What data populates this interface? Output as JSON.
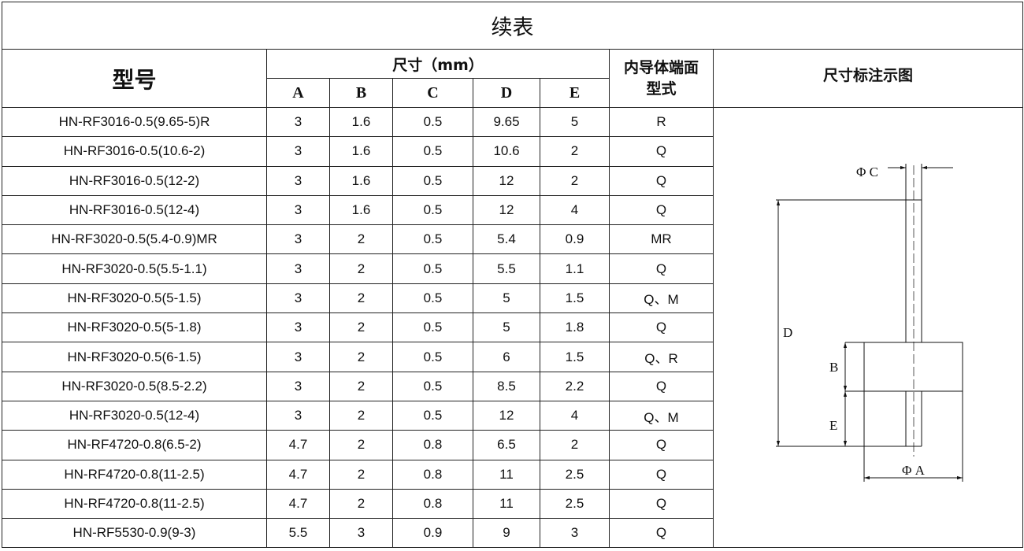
{
  "title": "续表",
  "headers": {
    "model": "型号",
    "dimensions": "尺寸（mm）",
    "cols": [
      "A",
      "B",
      "C",
      "D",
      "E"
    ],
    "inner_end": "内导体端面型式",
    "diagram": "尺寸标注示图"
  },
  "rows": [
    {
      "model": "HN-RF3016-0.5(9.65-5)R",
      "A": "3",
      "B": "1.6",
      "C": "0.5",
      "D": "9.65",
      "E": "5",
      "type": "R"
    },
    {
      "model": "HN-RF3016-0.5(10.6-2)",
      "A": "3",
      "B": "1.6",
      "C": "0.5",
      "D": "10.6",
      "E": "2",
      "type": "Q"
    },
    {
      "model": "HN-RF3016-0.5(12-2)",
      "A": "3",
      "B": "1.6",
      "C": "0.5",
      "D": "12",
      "E": "2",
      "type": "Q"
    },
    {
      "model": "HN-RF3016-0.5(12-4)",
      "A": "3",
      "B": "1.6",
      "C": "0.5",
      "D": "12",
      "E": "4",
      "type": "Q"
    },
    {
      "model": "HN-RF3020-0.5(5.4-0.9)MR",
      "A": "3",
      "B": "2",
      "C": "0.5",
      "D": "5.4",
      "E": "0.9",
      "type": "MR"
    },
    {
      "model": "HN-RF3020-0.5(5.5-1.1)",
      "A": "3",
      "B": "2",
      "C": "0.5",
      "D": "5.5",
      "E": "1.1",
      "type": "Q"
    },
    {
      "model": "HN-RF3020-0.5(5-1.5)",
      "A": "3",
      "B": "2",
      "C": "0.5",
      "D": "5",
      "E": "1.5",
      "type": "Q、M"
    },
    {
      "model": "HN-RF3020-0.5(5-1.8)",
      "A": "3",
      "B": "2",
      "C": "0.5",
      "D": "5",
      "E": "1.8",
      "type": "Q"
    },
    {
      "model": "HN-RF3020-0.5(6-1.5)",
      "A": "3",
      "B": "2",
      "C": "0.5",
      "D": "6",
      "E": "1.5",
      "type": "Q、R"
    },
    {
      "model": "HN-RF3020-0.5(8.5-2.2)",
      "A": "3",
      "B": "2",
      "C": "0.5",
      "D": "8.5",
      "E": "2.2",
      "type": "Q"
    },
    {
      "model": "HN-RF3020-0.5(12-4)",
      "A": "3",
      "B": "2",
      "C": "0.5",
      "D": "12",
      "E": "4",
      "type": "Q、M"
    },
    {
      "model": "HN-RF4720-0.8(6.5-2)",
      "A": "4.7",
      "B": "2",
      "C": "0.8",
      "D": "6.5",
      "E": "2",
      "type": "Q"
    },
    {
      "model": "HN-RF4720-0.8(11-2.5)",
      "A": "4.7",
      "B": "2",
      "C": "0.8",
      "D": "11",
      "E": "2.5",
      "type": "Q"
    },
    {
      "model": "HN-RF4720-0.8(11-2.5)",
      "A": "4.7",
      "B": "2",
      "C": "0.8",
      "D": "11",
      "E": "2.5",
      "type": "Q"
    },
    {
      "model": "HN-RF5530-0.9(9-3)",
      "A": "5.5",
      "B": "3",
      "C": "0.9",
      "D": "9",
      "E": "3",
      "type": "Q"
    }
  ],
  "diagram_labels": {
    "phiC": "Φ C",
    "D": "D",
    "B": "B",
    "E": "E",
    "phiA": "Φ A"
  }
}
